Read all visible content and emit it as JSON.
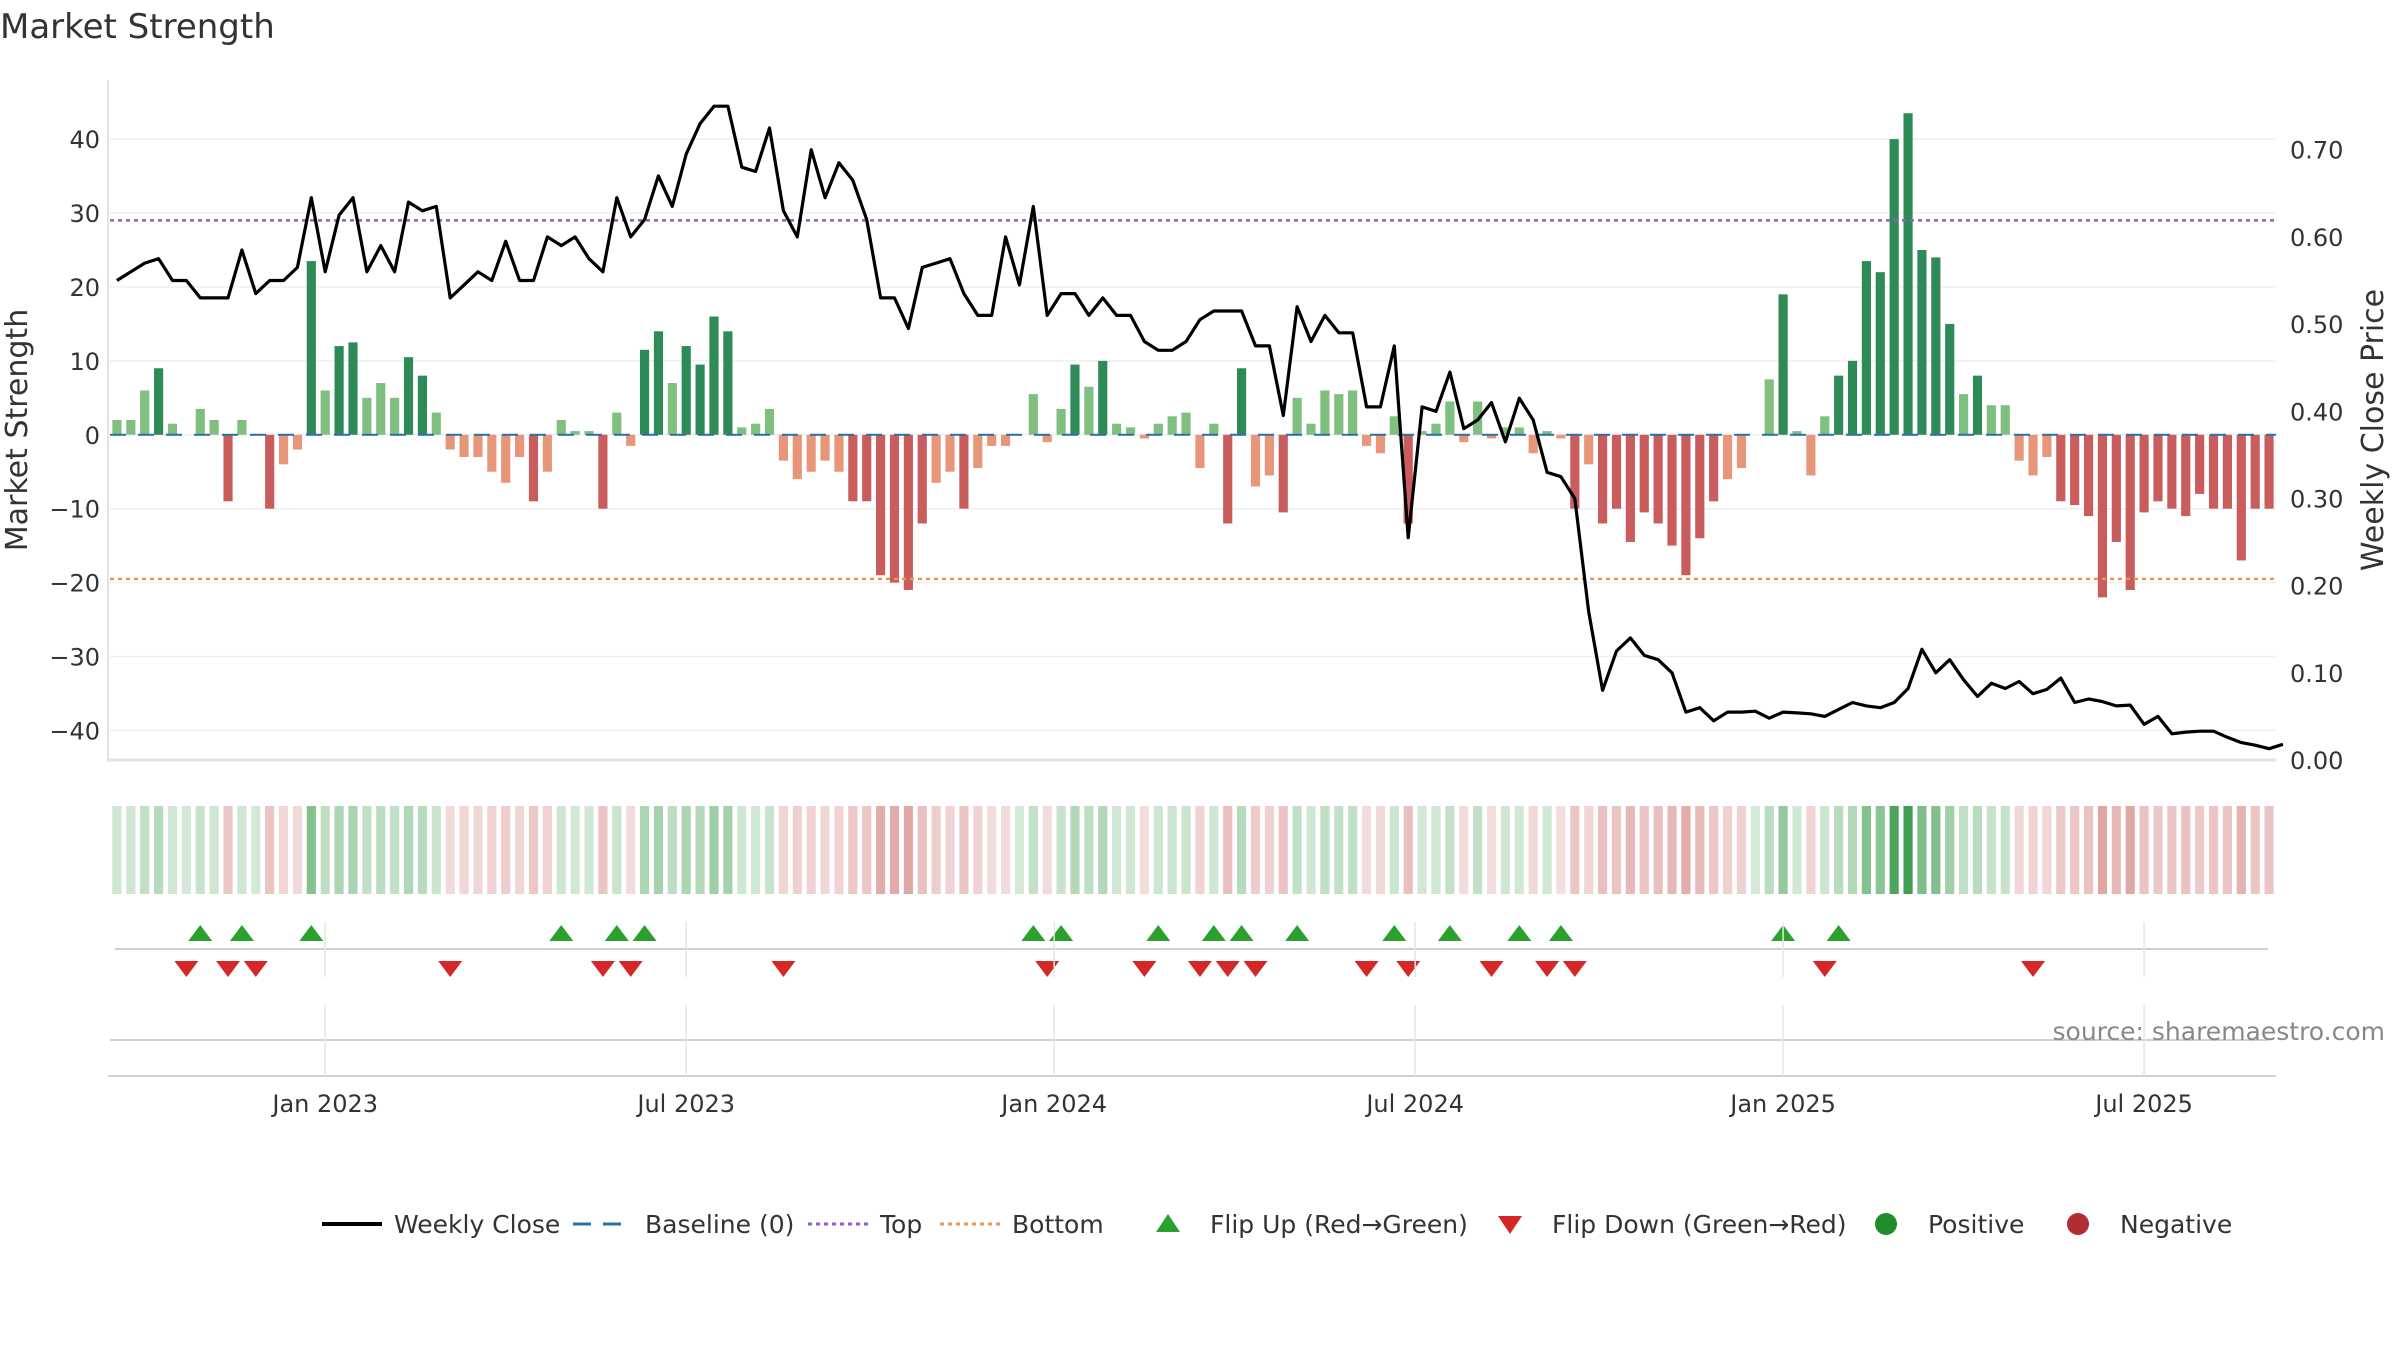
{
  "chart_data": {
    "type": "bar",
    "title": "Market Strength",
    "ylabel_left": "Market Strength",
    "ylabel_right": "Weekly Close Price",
    "ylim_left": [
      -44,
      48
    ],
    "ylim_right": [
      0.0,
      0.78
    ],
    "left_ticks": [
      -40,
      -30,
      -20,
      -10,
      0,
      10,
      20,
      30,
      40
    ],
    "left_tick_labels": [
      "−40",
      "−30",
      "−20",
      "−10",
      "0",
      "10",
      "20",
      "30",
      "40"
    ],
    "right_ticks": [
      0.0,
      0.1,
      0.2,
      0.3,
      0.4,
      0.5,
      0.6,
      0.7
    ],
    "right_tick_labels": [
      "0.00",
      "0.10",
      "0.20",
      "0.30",
      "0.40",
      "0.50",
      "0.60",
      "0.70"
    ],
    "x_ticks": [
      {
        "label": "Jan 2023",
        "week": 15
      },
      {
        "label": "Jul 2023",
        "week": 41
      },
      {
        "label": "Jan 2024",
        "week": 67.5
      },
      {
        "label": "Jul 2024",
        "week": 93.5
      },
      {
        "label": "Jan 2025",
        "week": 120
      },
      {
        "label": "Jul 2025",
        "week": 146
      }
    ],
    "top_line": 29,
    "bottom_line": -19.5,
    "grid": true,
    "strength": [
      2,
      2,
      6,
      9,
      1.5,
      0,
      3.5,
      2,
      -9,
      2,
      0,
      -10,
      -4,
      -2,
      23.5,
      6,
      12,
      12.5,
      5,
      7,
      5,
      10.5,
      8,
      3,
      -2,
      -3,
      -3,
      -5,
      -6.5,
      -3,
      -9,
      -5,
      2,
      0.5,
      0.5,
      -10,
      3,
      -1.5,
      11.5,
      14,
      7,
      12,
      9.5,
      16,
      14,
      1,
      1.5,
      3.5,
      -3.5,
      -6,
      -5,
      -3.5,
      -5,
      -9,
      -9,
      -19,
      -20,
      -21,
      -12,
      -6.5,
      -5,
      -10,
      -4.5,
      -1.5,
      -1.5,
      0,
      5.5,
      -1,
      3.5,
      9.5,
      6.5,
      10,
      1.5,
      1,
      -0.5,
      1.5,
      2.5,
      3,
      -4.5,
      1.5,
      -12,
      9,
      -7,
      -5.5,
      -10.5,
      5,
      1.5,
      6,
      5.5,
      6,
      -1.5,
      -2.5,
      2.5,
      -12,
      0.5,
      1.5,
      4.5,
      -1,
      4.5,
      -0.5,
      1,
      1,
      -2.5,
      0.5,
      -0.5,
      -10,
      -4,
      -12,
      -10,
      -14.5,
      -10.5,
      -12,
      -15,
      -19,
      -14,
      -9,
      -6,
      -4.5,
      0,
      7.5,
      19,
      0.5,
      -5.5,
      2.5,
      8,
      10,
      23.5,
      22,
      40,
      43.5,
      25,
      24,
      15,
      5.5,
      8,
      4,
      4,
      -3.5,
      -5.5,
      -3,
      -9,
      -9.5,
      -11,
      -22,
      -14.5,
      -21,
      -10.5,
      -9,
      -10,
      -11,
      -8,
      -10,
      -10,
      -17,
      -10,
      -10
    ],
    "weekly_close": [
      0.55,
      0.56,
      0.57,
      0.575,
      0.55,
      0.55,
      0.53,
      0.53,
      0.53,
      0.585,
      0.535,
      0.55,
      0.55,
      0.565,
      0.645,
      0.56,
      0.625,
      0.645,
      0.56,
      0.59,
      0.56,
      0.64,
      0.63,
      0.635,
      0.53,
      0.545,
      0.56,
      0.55,
      0.595,
      0.55,
      0.55,
      0.6,
      0.59,
      0.6,
      0.575,
      0.56,
      0.645,
      0.6,
      0.62,
      0.67,
      0.635,
      0.695,
      0.73,
      0.75,
      0.75,
      0.68,
      0.675,
      0.725,
      0.63,
      0.6,
      0.7,
      0.645,
      0.685,
      0.665,
      0.62,
      0.53,
      0.53,
      0.495,
      0.565,
      0.57,
      0.575,
      0.535,
      0.51,
      0.51,
      0.6,
      0.545,
      0.635,
      0.51,
      0.535,
      0.535,
      0.51,
      0.53,
      0.51,
      0.51,
      0.48,
      0.47,
      0.47,
      0.48,
      0.505,
      0.515,
      0.515,
      0.515,
      0.475,
      0.475,
      0.395,
      0.52,
      0.48,
      0.51,
      0.49,
      0.49,
      0.405,
      0.405,
      0.475,
      0.255,
      0.405,
      0.4,
      0.445,
      0.38,
      0.39,
      0.41,
      0.365,
      0.415,
      0.39,
      0.33,
      0.325,
      0.3,
      0.17,
      0.08,
      0.125,
      0.14,
      0.12,
      0.115,
      0.1,
      0.055,
      0.06,
      0.045,
      0.055,
      0.055,
      0.056,
      0.048,
      0.055,
      0.054,
      0.053,
      0.05,
      0.058,
      0.066,
      0.062,
      0.06,
      0.066,
      0.082,
      0.127,
      0.1,
      0.115,
      0.092,
      0.073,
      0.088,
      0.082,
      0.09,
      0.076,
      0.081,
      0.094,
      0.066,
      0.07,
      0.067,
      0.062,
      0.063,
      0.041,
      0.05,
      0.03,
      0.032,
      0.033,
      0.033,
      0.026,
      0.02,
      0.017,
      0.013,
      0.018
    ],
    "heat_strip": "regime color strip",
    "flip_up_weeks": [
      6,
      9,
      14,
      32,
      36,
      38,
      66,
      68,
      75,
      79,
      81,
      85,
      92,
      96,
      101,
      104,
      120,
      124
    ],
    "flip_down_weeks": [
      5,
      8,
      10,
      24,
      35,
      37,
      48,
      67,
      74,
      78,
      80,
      82,
      90,
      93,
      99,
      103,
      105,
      123,
      138
    ],
    "legend": [
      {
        "label": "Weekly Close",
        "symbol": "line",
        "color": "#000000"
      },
      {
        "label": "Baseline (0)",
        "symbol": "dash",
        "color": "#2c6fa5"
      },
      {
        "label": "Top",
        "symbol": "dot",
        "color": "#8e5fbf"
      },
      {
        "label": "Bottom",
        "symbol": "dot",
        "color": "#e8965a"
      },
      {
        "label": "Flip Up (Red→Green)",
        "symbol": "triangle-up",
        "color": "#2ca02c"
      },
      {
        "label": "Flip Down (Green→Red)",
        "symbol": "triangle-down",
        "color": "#d62728"
      },
      {
        "label": "Positive",
        "symbol": "circle",
        "color": "#1e8c2b"
      },
      {
        "label": "Negative",
        "symbol": "circle",
        "color": "#b22d33"
      }
    ],
    "colors": {
      "pos_strong": "#2e8a57",
      "pos_light": "#7fbf7f",
      "neg_strong": "#c95c5c",
      "neg_light": "#e8967a",
      "close_line": "#000000",
      "baseline": "#2c6fa5",
      "top": "#8e5fbf",
      "bottom": "#e8965a"
    }
  },
  "source": "source: sharemaestro.com"
}
